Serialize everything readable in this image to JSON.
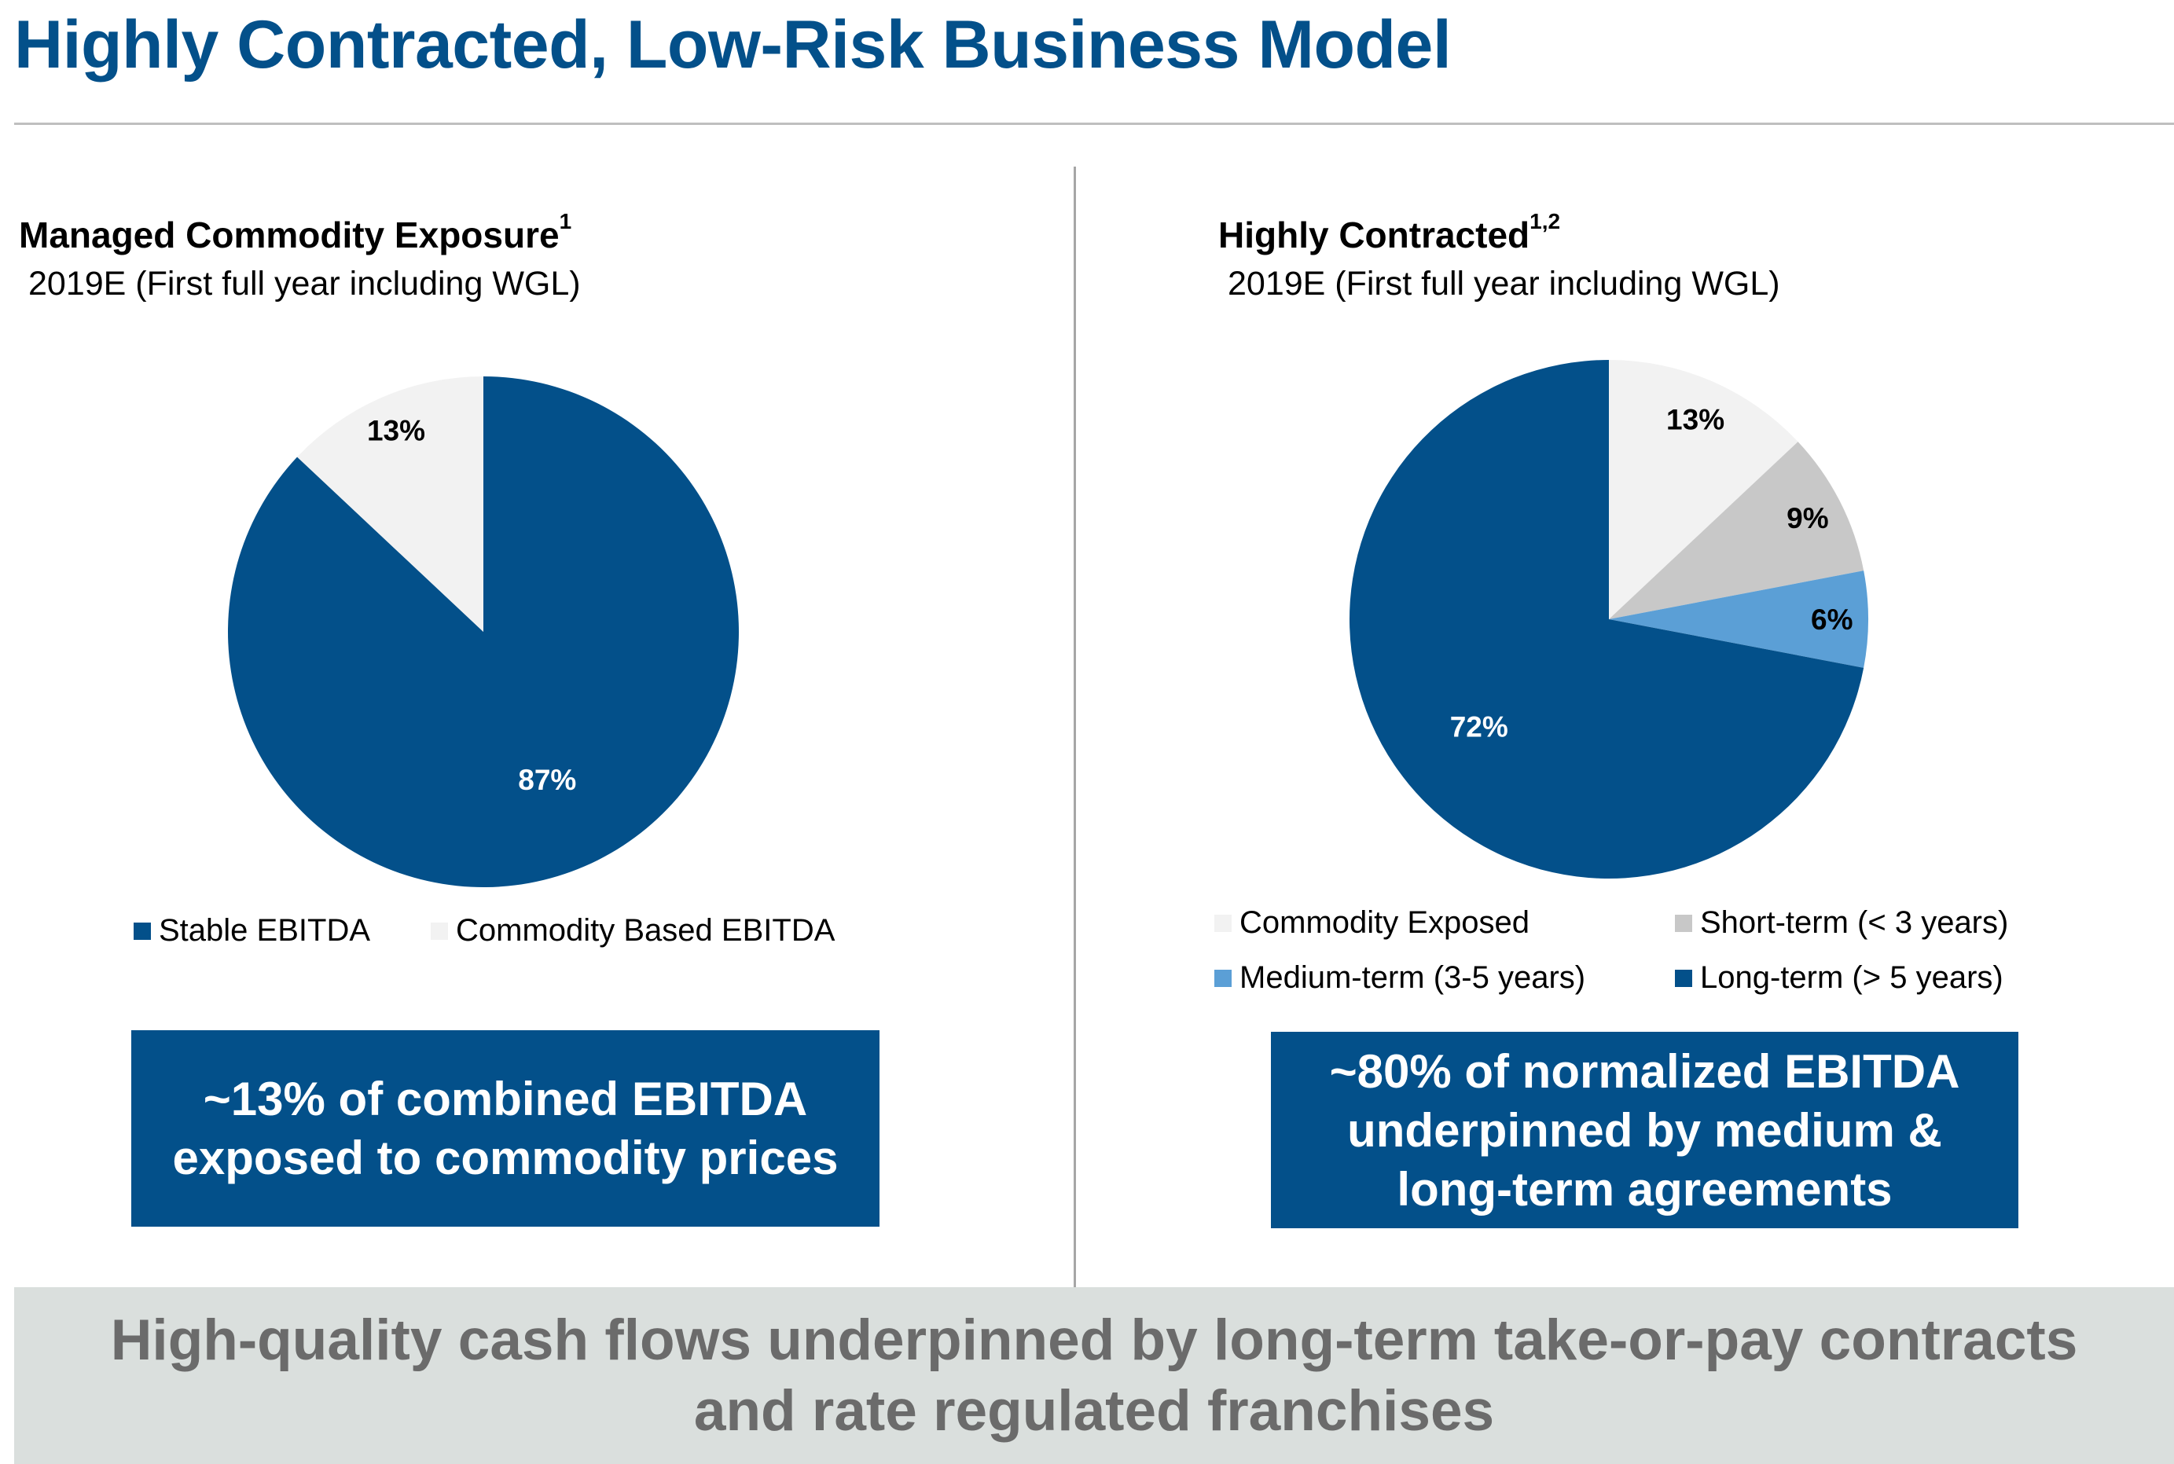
{
  "page": {
    "title": "Highly Contracted, Low-Risk Business Model",
    "footer_line1": "High-quality cash flows underpinned by long-term take-or-pay contracts",
    "footer_line2": "and rate regulated franchises"
  },
  "left": {
    "heading": "Managed Commodity Exposure",
    "heading_sup": "1",
    "subtitle": "2019E (First full year including WGL)",
    "callout_line1": "~13% of combined EBITDA",
    "callout_line2": "exposed to commodity prices"
  },
  "right": {
    "heading": "Highly Contracted",
    "heading_sup": "1,2",
    "subtitle": "2019E (First full year including WGL)",
    "callout_line1": "~80% of normalized EBITDA",
    "callout_line2": "underpinned by medium &",
    "callout_line3": "long-term agreements"
  },
  "chart_data": [
    {
      "type": "pie",
      "title": "Managed Commodity Exposure",
      "slices": [
        {
          "name": "Stable EBITDA",
          "value": 87,
          "label": "87%",
          "color": "#03508A"
        },
        {
          "name": "Commodity Based EBITDA",
          "value": 13,
          "label": "13%",
          "color": "#F2F2F2"
        }
      ],
      "legend": [
        "Stable EBITDA",
        "Commodity Based EBITDA"
      ],
      "legend_position": "bottom"
    },
    {
      "type": "pie",
      "title": "Highly Contracted",
      "slices": [
        {
          "name": "Commodity Exposed",
          "value": 13,
          "label": "13%",
          "color": "#F2F2F2"
        },
        {
          "name": "Short-term (< 3 years)",
          "value": 9,
          "label": "9%",
          "color": "#C8C8C8"
        },
        {
          "name": "Medium-term (3-5 years)",
          "value": 6,
          "label": "6%",
          "color": "#5B9FD6"
        },
        {
          "name": "Long-term (> 5 years)",
          "value": 72,
          "label": "72%",
          "color": "#03508A"
        }
      ],
      "legend": [
        "Commodity Exposed",
        "Short-term (< 3 years)",
        "Medium-term (3-5 years)",
        "Long-term (> 5 years)"
      ],
      "legend_position": "bottom"
    }
  ]
}
